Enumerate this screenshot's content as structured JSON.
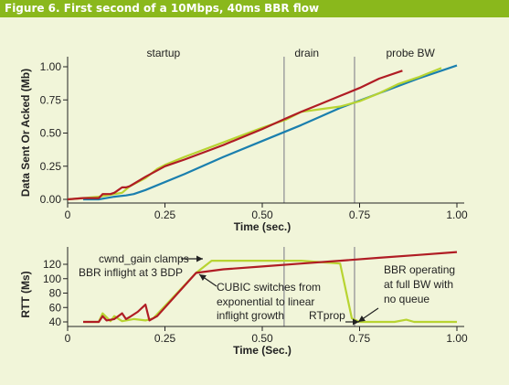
{
  "figure": {
    "title": "Figure 6. First second of a 10Mbps, 40ms BBR flow"
  },
  "colors": {
    "bbr": "#b01c24",
    "sent": "#b8d431",
    "acked": "#1a7fae",
    "vline": "#a0a0a0",
    "title_bg": "#8ab81c",
    "panel_bg": "#f1f5d9"
  },
  "chart_data": [
    {
      "type": "line",
      "title": "",
      "xlabel": "Time (sec.)",
      "ylabel": "Data Sent Or Acked (Mb)",
      "xlim": [
        0,
        1.05
      ],
      "ylim": [
        0,
        1.05
      ],
      "x_ticks": [
        "0",
        "0.25",
        "0.50",
        "0.75",
        "1.00"
      ],
      "y_ticks": [
        "0.00",
        "0.25",
        "0.50",
        "0.75",
        "1.00"
      ],
      "phase_lines": [
        0.556,
        0.737
      ],
      "phase_labels": [
        {
          "text": "startup",
          "x": 0.25
        },
        {
          "text": "drain",
          "x": 0.63
        },
        {
          "text": "probe BW",
          "x": 0.865
        }
      ],
      "series": [
        {
          "key": "red",
          "x": [
            0.0,
            0.04,
            0.08,
            0.09,
            0.11,
            0.12,
            0.14,
            0.15,
            0.16,
            0.2,
            0.25,
            0.3,
            0.4,
            0.5,
            0.56,
            0.6,
            0.65,
            0.7,
            0.75,
            0.8,
            0.86
          ],
          "y": [
            0.0,
            0.01,
            0.01,
            0.04,
            0.04,
            0.05,
            0.09,
            0.09,
            0.1,
            0.17,
            0.25,
            0.3,
            0.41,
            0.53,
            0.61,
            0.66,
            0.72,
            0.78,
            0.84,
            0.91,
            0.97
          ]
        },
        {
          "key": "yellow",
          "x": [
            0.0,
            0.04,
            0.08,
            0.1,
            0.12,
            0.14,
            0.16,
            0.2,
            0.23,
            0.25,
            0.3,
            0.4,
            0.5,
            0.56,
            0.6,
            0.65,
            0.7,
            0.75,
            0.8,
            0.85,
            0.9,
            0.96
          ],
          "y": [
            0.0,
            0.01,
            0.02,
            0.03,
            0.04,
            0.05,
            0.1,
            0.16,
            0.23,
            0.26,
            0.32,
            0.43,
            0.54,
            0.6,
            0.66,
            0.68,
            0.7,
            0.74,
            0.8,
            0.87,
            0.92,
            0.99
          ]
        },
        {
          "key": "blue",
          "x": [
            0.04,
            0.08,
            0.1,
            0.12,
            0.15,
            0.17,
            0.2,
            0.3,
            0.4,
            0.5,
            0.6,
            0.7,
            0.8,
            0.9,
            1.0
          ],
          "y": [
            0.0,
            0.0,
            0.01,
            0.02,
            0.03,
            0.04,
            0.07,
            0.19,
            0.32,
            0.44,
            0.56,
            0.69,
            0.8,
            0.91,
            1.01
          ]
        }
      ]
    },
    {
      "type": "line",
      "title": "",
      "xlabel": "Time (Sec.)",
      "ylabel": "RTT (Ms)",
      "xlim": [
        0,
        1.05
      ],
      "ylim": [
        35,
        135
      ],
      "x_ticks": [
        "0",
        "0.25",
        "0.50",
        "0.75",
        "1.00"
      ],
      "y_ticks": [
        "40",
        "60",
        "80",
        "100",
        "120"
      ],
      "phase_lines": [
        0.556,
        0.737
      ],
      "series": [
        {
          "key": "red",
          "x": [
            0.04,
            0.08,
            0.09,
            0.1,
            0.12,
            0.14,
            0.15,
            0.16,
            0.18,
            0.2,
            0.21,
            0.23,
            0.33,
            0.4,
            0.5,
            0.6,
            0.7,
            0.8,
            0.9,
            1.0
          ],
          "y": [
            40,
            40,
            48,
            42,
            44,
            52,
            44,
            47,
            54,
            64,
            42,
            48,
            108,
            113,
            117,
            121,
            125,
            129,
            133,
            137
          ]
        },
        {
          "key": "yellow",
          "x": [
            0.04,
            0.08,
            0.09,
            0.11,
            0.12,
            0.14,
            0.17,
            0.2,
            0.22,
            0.33,
            0.37,
            0.5,
            0.6,
            0.7,
            0.73,
            0.75,
            0.8,
            0.84,
            0.87,
            0.89,
            1.0
          ],
          "y": [
            40,
            40,
            52,
            41,
            48,
            41,
            44,
            42,
            45,
            108,
            125,
            125,
            125,
            121,
            45,
            40,
            40,
            40,
            43,
            40,
            40
          ]
        }
      ],
      "annotations": [
        "cwnd_gain clamps",
        "BBR inflight at 3 BDP",
        "CUBIC switches from",
        "exponential to linear",
        "inflight growth",
        "RTprop",
        "BBR operating",
        "at full BW with",
        "no queue"
      ]
    }
  ]
}
